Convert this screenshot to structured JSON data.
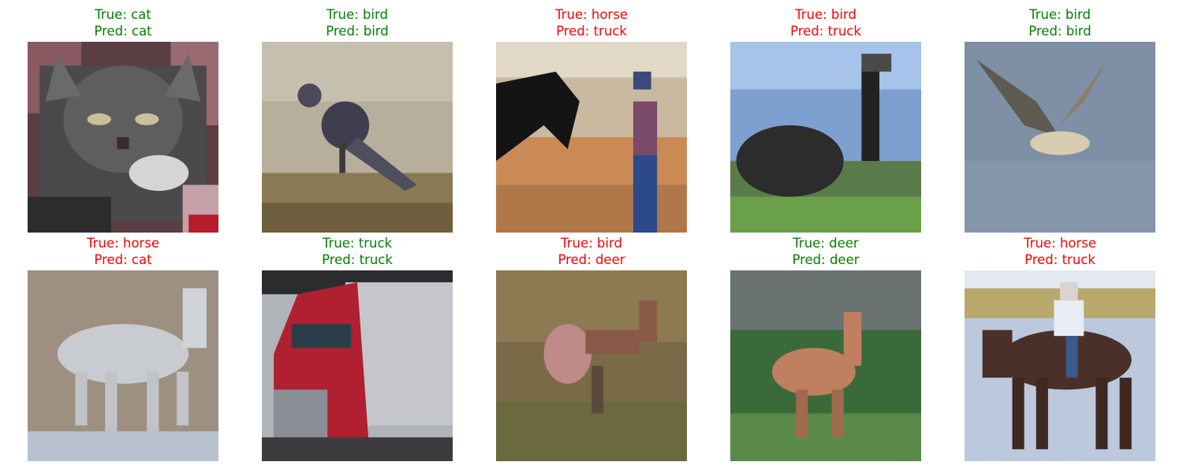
{
  "colors": {
    "correct": "#008000",
    "incorrect": "#ff0000"
  },
  "samples": [
    {
      "true_label": "True: cat",
      "pred_label": "Pred: cat",
      "correct": true,
      "depicts": "cat"
    },
    {
      "true_label": "True: bird",
      "pred_label": "Pred: bird",
      "correct": true,
      "depicts": "bird"
    },
    {
      "true_label": "True: horse",
      "pred_label": "Pred: truck",
      "correct": false,
      "depicts": "horse"
    },
    {
      "true_label": "True: bird",
      "pred_label": "Pred: truck",
      "correct": false,
      "depicts": "bird"
    },
    {
      "true_label": "True: bird",
      "pred_label": "Pred: bird",
      "correct": true,
      "depicts": "bird"
    },
    {
      "true_label": "True: horse",
      "pred_label": "Pred: cat",
      "correct": false,
      "depicts": "horse"
    },
    {
      "true_label": "True: truck",
      "pred_label": "Pred: truck",
      "correct": true,
      "depicts": "truck"
    },
    {
      "true_label": "True: bird",
      "pred_label": "Pred: deer",
      "correct": false,
      "depicts": "bird"
    },
    {
      "true_label": "True: deer",
      "pred_label": "Pred: deer",
      "correct": true,
      "depicts": "deer"
    },
    {
      "true_label": "True: horse",
      "pred_label": "Pred: truck",
      "correct": false,
      "depicts": "horse"
    }
  ]
}
